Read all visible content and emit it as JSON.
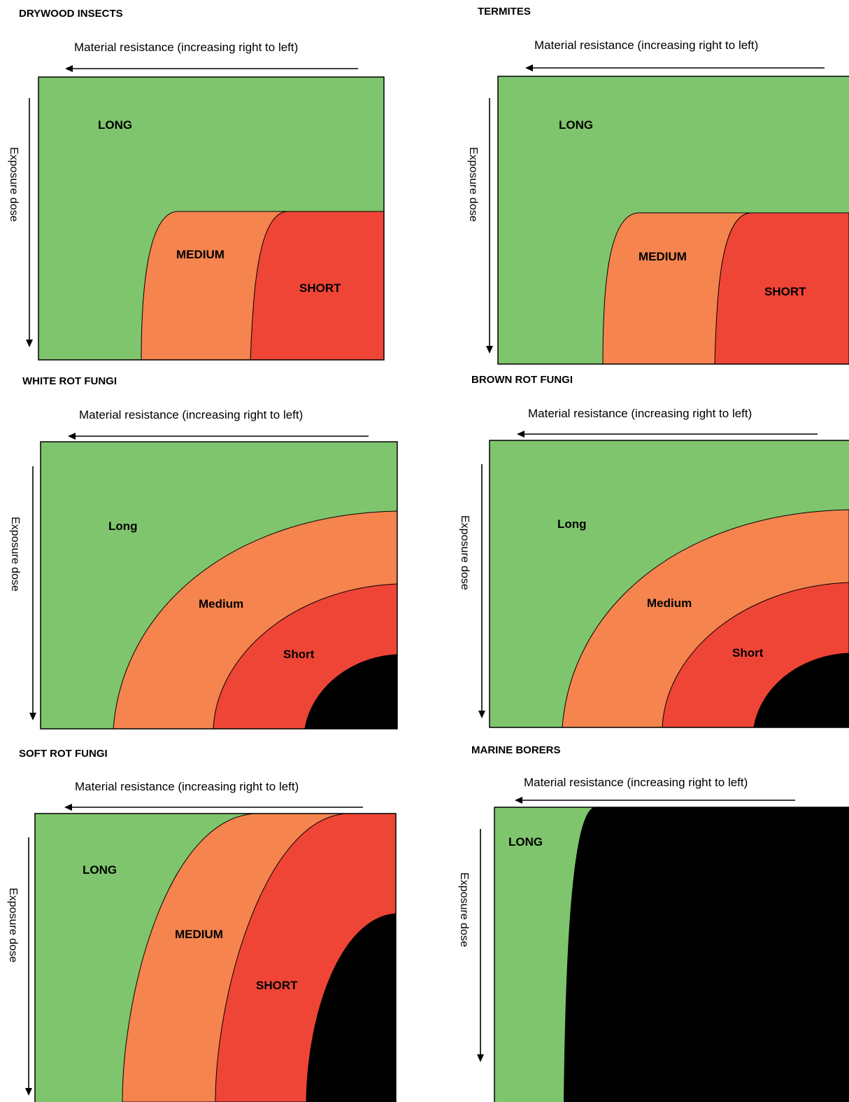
{
  "colors": {
    "long": "#7fc56d",
    "medium": "#f5844f",
    "short": "#ef4537",
    "none": "#000000"
  },
  "panels": {
    "drywood": {
      "title": "DRYWOOD INSECTS",
      "x_axis": "Material resistance (increasing right to left)",
      "y_axis": "Exposure dose",
      "zones": {
        "long": "LONG",
        "medium": "MEDIUM",
        "short": "SHORT"
      }
    },
    "termites": {
      "title": "TERMITES",
      "x_axis": "Material resistance (increasing right to left)",
      "y_axis": "Exposure dose",
      "zones": {
        "long": "LONG",
        "medium": "MEDIUM",
        "short": "SHORT"
      }
    },
    "white_rot": {
      "title": "WHITE ROT FUNGI",
      "x_axis": "Material resistance (increasing right to left)",
      "y_axis": "Exposure dose",
      "zones": {
        "long": "Long",
        "medium": "Medium",
        "short": "Short"
      }
    },
    "brown_rot": {
      "title": "BROWN ROT FUNGI",
      "x_axis": "Material resistance (increasing right to left)",
      "y_axis": "Exposure dose",
      "zones": {
        "long": "Long",
        "medium": "Medium",
        "short": "Short"
      }
    },
    "soft_rot": {
      "title": "SOFT ROT FUNGI",
      "x_axis": "Material resistance (increasing right to left)",
      "y_axis": "Exposure dose",
      "zones": {
        "long": "LONG",
        "medium": "MEDIUM",
        "short": "SHORT"
      }
    },
    "marine": {
      "title": "MARINE BORERS",
      "x_axis": "Material resistance (increasing right to left)",
      "y_axis": "Exposure dose",
      "zones": {
        "long": "LONG"
      }
    }
  }
}
